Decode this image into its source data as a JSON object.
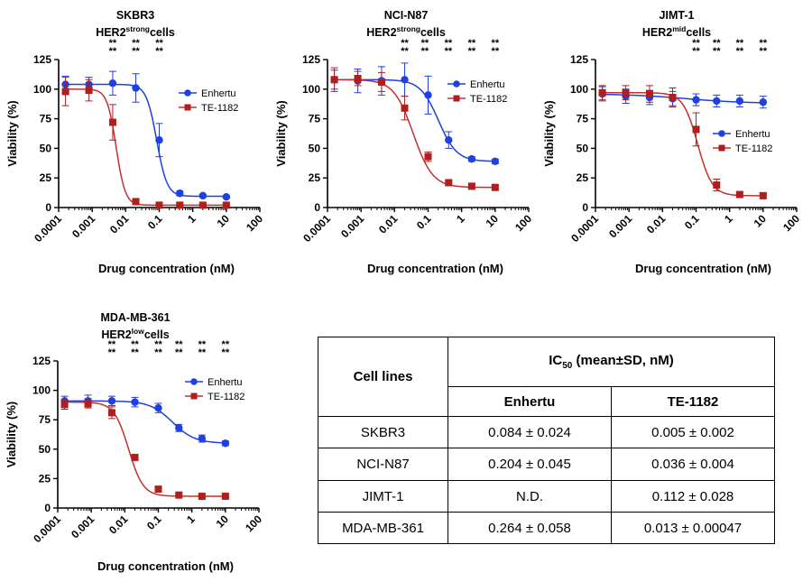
{
  "colors": {
    "enhertu": "#1f3fe0",
    "te1182": "#b01e1e",
    "curve_te1182": "#c4302b",
    "axis": "#000000"
  },
  "common": {
    "xlabel": "Drug concentration (nM)",
    "ylabel": "Viability (%)",
    "legend": [
      "Enhertu",
      "TE-1182"
    ],
    "star_text": "**"
  },
  "chart_data": [
    {
      "type": "line",
      "x_scale": "log",
      "title_line1": "SKBR3",
      "title_line2_pre": "HER2",
      "title_line2_sup": "strong",
      "title_line2_post": "cells",
      "xlabel": "Drug concentration (nM)",
      "ylabel": "Viability (%)",
      "xlim": [
        0.0001,
        100
      ],
      "ylim": [
        0,
        125
      ],
      "x_ticks": [
        "0.0001",
        "0.001",
        "0.01",
        "0.1",
        "1",
        "10",
        "100"
      ],
      "y_ticks": [
        "0",
        "25",
        "50",
        "75",
        "100",
        "125"
      ],
      "legend_position": "right",
      "stars_at_x": [
        0.0041,
        0.02,
        0.1
      ],
      "series": [
        {
          "name": "Enhertu",
          "x": [
            0.00016,
            0.0008,
            0.0041,
            0.02,
            0.1,
            0.41,
            2,
            10
          ],
          "y": [
            104,
            104,
            105,
            101,
            57,
            12,
            10,
            9
          ],
          "err": [
            7,
            6,
            10,
            12,
            14,
            2,
            1,
            1
          ],
          "fit": {
            "top": 104,
            "bottom": 9.5,
            "ic50": 0.084,
            "hill": 2.8
          }
        },
        {
          "name": "TE-1182",
          "x": [
            0.00016,
            0.0008,
            0.0041,
            0.02,
            0.1,
            0.41,
            2,
            10
          ],
          "y": [
            98,
            99,
            72,
            5,
            2,
            2,
            2,
            2
          ],
          "err": [
            12,
            9,
            15,
            2,
            1,
            1,
            1,
            1
          ],
          "fit": {
            "top": 100,
            "bottom": 2,
            "ic50": 0.0052,
            "hill": 3.2
          }
        }
      ]
    },
    {
      "type": "line",
      "x_scale": "log",
      "title_line1": "NCI-N87",
      "title_line2_pre": "HER2",
      "title_line2_sup": "strong",
      "title_line2_post": "cells",
      "xlabel": "Drug concentration (nM)",
      "ylabel": "Viability (%)",
      "xlim": [
        0.0001,
        100
      ],
      "ylim": [
        0,
        125
      ],
      "x_ticks": [
        "0.0001",
        "0.001",
        "0.01",
        "0.1",
        "1",
        "10",
        "100"
      ],
      "y_ticks": [
        "0",
        "25",
        "50",
        "75",
        "100",
        "125"
      ],
      "legend_position": "right",
      "stars_at_x": [
        0.02,
        0.08,
        0.4,
        2,
        10
      ],
      "series": [
        {
          "name": "Enhertu",
          "x": [
            0.00016,
            0.0008,
            0.0041,
            0.02,
            0.1,
            0.41,
            2,
            10
          ],
          "y": [
            108,
            107,
            107,
            108,
            95,
            57,
            41,
            39
          ],
          "err": [
            8,
            10,
            12,
            14,
            16,
            7,
            2,
            2
          ],
          "fit": {
            "top": 108,
            "bottom": 39,
            "ic50": 0.204,
            "hill": 1.6
          }
        },
        {
          "name": "TE-1182",
          "x": [
            0.00016,
            0.0008,
            0.0041,
            0.02,
            0.1,
            0.41,
            2,
            10
          ],
          "y": [
            108,
            109,
            106,
            84,
            43,
            21,
            18,
            17
          ],
          "err": [
            10,
            6,
            8,
            10,
            4,
            2,
            2,
            2
          ],
          "fit": {
            "top": 108,
            "bottom": 17,
            "ic50": 0.036,
            "hill": 1.5
          }
        }
      ]
    },
    {
      "type": "line",
      "x_scale": "log",
      "title_line1": "JIMT-1",
      "title_line2_pre": "HER2",
      "title_line2_sup": "mid",
      "title_line2_post": "cells",
      "xlabel": "Drug concentration (nM)",
      "ylabel": "Viability (%)",
      "xlim": [
        0.0001,
        100
      ],
      "ylim": [
        0,
        125
      ],
      "x_ticks": [
        "0.0001",
        "0.001",
        "0.01",
        "0.1",
        "1",
        "10",
        "100"
      ],
      "y_ticks": [
        "0",
        "25",
        "50",
        "75",
        "100",
        "125"
      ],
      "legend_position": "right",
      "stars_at_x": [
        0.1,
        0.41,
        2,
        10
      ],
      "series": [
        {
          "name": "Enhertu",
          "x": [
            0.00016,
            0.0008,
            0.0041,
            0.02,
            0.1,
            0.41,
            2,
            10
          ],
          "y": [
            96,
            94,
            93,
            92,
            91,
            90,
            90,
            89
          ],
          "err": [
            6,
            6,
            6,
            6,
            5,
            5,
            5,
            5
          ],
          "fit": {
            "top": 96,
            "bottom": 88,
            "ic50": 0.05,
            "hill": 0.5
          }
        },
        {
          "name": "TE-1182",
          "x": [
            0.00016,
            0.0008,
            0.0041,
            0.02,
            0.1,
            0.41,
            2,
            10
          ],
          "y": [
            97,
            97,
            96,
            93,
            66,
            19,
            11,
            10
          ],
          "err": [
            6,
            6,
            7,
            8,
            14,
            5,
            2,
            2
          ],
          "fit": {
            "top": 97,
            "bottom": 10,
            "ic50": 0.112,
            "hill": 2.0
          }
        }
      ]
    },
    {
      "type": "line",
      "x_scale": "log",
      "title_line1": "MDA-MB-361",
      "title_line2_pre": "HER2",
      "title_line2_sup": "low",
      "title_line2_post": "cells",
      "xlabel": "Drug concentration (nM)",
      "ylabel": "Viability (%)",
      "xlim": [
        0.0001,
        100
      ],
      "ylim": [
        0,
        125
      ],
      "x_ticks": [
        "0.0001",
        "0.001",
        "0.01",
        "0.1",
        "1",
        "10",
        "100"
      ],
      "y_ticks": [
        "0",
        "25",
        "50",
        "75",
        "100",
        "125"
      ],
      "legend_position": "right",
      "stars_at_x": [
        0.0041,
        0.02,
        0.1,
        0.41,
        2,
        10
      ],
      "series": [
        {
          "name": "Enhertu",
          "x": [
            0.00016,
            0.0008,
            0.0041,
            0.02,
            0.1,
            0.41,
            2,
            10
          ],
          "y": [
            91,
            91,
            91,
            90,
            85,
            68,
            59,
            55
          ],
          "err": [
            4,
            5,
            4,
            4,
            4,
            3,
            3,
            2
          ],
          "fit": {
            "top": 91,
            "bottom": 55,
            "ic50": 0.264,
            "hill": 1.3
          }
        },
        {
          "name": "TE-1182",
          "x": [
            0.00016,
            0.0008,
            0.0041,
            0.02,
            0.1,
            0.41,
            2,
            10
          ],
          "y": [
            88,
            89,
            81,
            43,
            16,
            11,
            10,
            10
          ],
          "err": [
            4,
            4,
            5,
            2,
            2,
            1,
            1,
            1
          ],
          "fit": {
            "top": 90,
            "bottom": 10,
            "ic50": 0.013,
            "hill": 2.0
          }
        }
      ]
    }
  ],
  "table": {
    "header_cell_lines": "Cell lines",
    "header_ic_prefix": "IC",
    "header_ic_sub": "50",
    "header_ic_suffix": " (mean±SD, nM)",
    "header_enhertu": "Enhertu",
    "header_te": "TE-1182",
    "rows": [
      {
        "line": "SKBR3",
        "enhertu": "0.084 ± 0.024",
        "te": "0.005 ± 0.002"
      },
      {
        "line": "NCI-N87",
        "enhertu": "0.204 ± 0.045",
        "te": "0.036 ± 0.004"
      },
      {
        "line": "JIMT-1",
        "enhertu": "N.D.",
        "te": "0.112 ± 0.028"
      },
      {
        "line": "MDA-MB-361",
        "enhertu": "0.264 ± 0.058",
        "te": "0.013 ± 0.00047"
      }
    ]
  }
}
